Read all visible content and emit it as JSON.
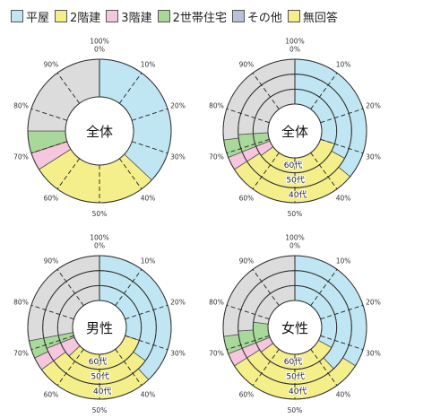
{
  "legend": [
    {
      "label": "平屋",
      "color": "#bfe6f2"
    },
    {
      "label": "2階建",
      "color": "#f4ef8a"
    },
    {
      "label": "3階建",
      "color": "#f6c6de"
    },
    {
      "label": "2世帯住宅",
      "color": "#a8d89a"
    },
    {
      "label": "その他",
      "color": "#b8c0dc"
    },
    {
      "label": "無回答",
      "color": "#f4ef8a"
    }
  ],
  "chart_data": [
    {
      "type": "pie",
      "title": "全体",
      "tick_labels": [
        "100%\n0%",
        "10%",
        "20%",
        "30%",
        "40%",
        "50%",
        "60%",
        "70%",
        "80%",
        "90%"
      ],
      "series": [
        {
          "values": [
            37,
            29,
            4,
            5,
            0,
            25
          ]
        }
      ]
    },
    {
      "type": "pie",
      "title": "全体",
      "tick_labels": [
        "100%\n0%",
        "10%",
        "20%",
        "30%",
        "40%",
        "50%",
        "60%",
        "70%",
        "80%",
        "90%"
      ],
      "ring_labels": [
        "60代",
        "50代",
        "40代"
      ],
      "series": [
        {
          "name": "40代",
          "values": [
            30,
            35,
            4,
            5,
            0,
            26
          ]
        },
        {
          "name": "50代",
          "values": [
            33,
            33,
            3,
            5,
            0,
            26
          ]
        },
        {
          "name": "60代",
          "values": [
            36,
            30,
            3,
            4,
            0,
            27
          ]
        }
      ]
    },
    {
      "type": "pie",
      "title": "男性",
      "tick_labels": [
        "100%\n0%",
        "10%",
        "20%",
        "30%",
        "40%",
        "50%",
        "60%",
        "70%",
        "80%",
        "90%"
      ],
      "ring_labels": [
        "60代",
        "50代",
        "40代"
      ],
      "series": [
        {
          "name": "40代",
          "values": [
            30,
            33,
            6,
            3,
            0,
            28
          ]
        },
        {
          "name": "50代",
          "values": [
            35,
            30,
            4,
            3,
            0,
            28
          ]
        },
        {
          "name": "60代",
          "values": [
            38,
            27,
            3,
            4,
            0,
            28
          ]
        }
      ]
    },
    {
      "type": "pie",
      "title": "女性",
      "tick_labels": [
        "100%\n0%",
        "10%",
        "20%",
        "30%",
        "40%",
        "50%",
        "60%",
        "70%",
        "80%",
        "90%"
      ],
      "ring_labels": [
        "60代",
        "50代",
        "40代"
      ],
      "series": [
        {
          "name": "40代",
          "values": [
            33,
            32,
            4,
            8,
            0,
            23
          ]
        },
        {
          "name": "50代",
          "values": [
            38,
            28,
            3,
            5,
            0,
            26
          ]
        },
        {
          "name": "60代",
          "values": [
            34,
            32,
            3,
            4,
            0,
            27
          ]
        }
      ]
    }
  ]
}
